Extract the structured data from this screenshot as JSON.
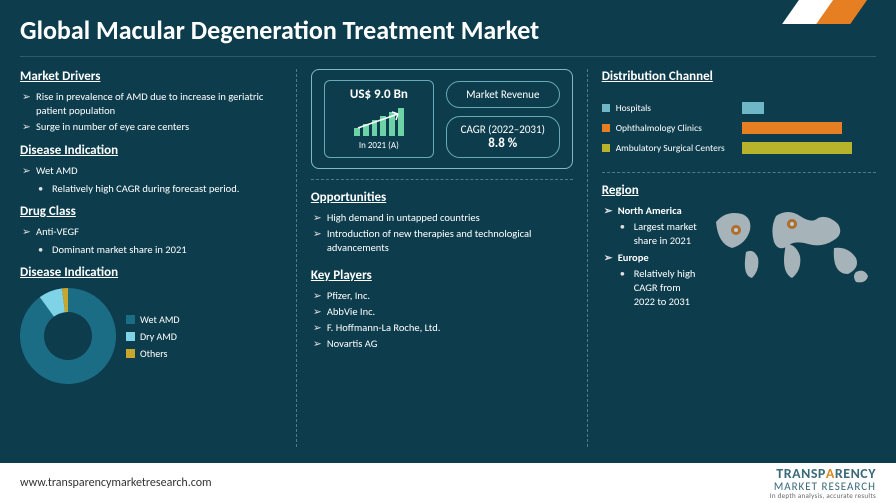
{
  "title": "Global Macular Degeneration Treatment Market",
  "footer": {
    "url": "www.transparencymarketresearch.com"
  },
  "brand": {
    "line1a": "TRANSP",
    "line1b": "A",
    "line1c": "RENCY",
    "line2": "MARKET RESEARCH",
    "tag": "In depth analysis, accurate results"
  },
  "left": {
    "drivers_h": "Market Drivers",
    "drivers": [
      "Rise in prevalence of AMD due to increase in geriatric patient population",
      "Surge in number of eye care centers"
    ],
    "disease_h": "Disease Indication",
    "disease_items": [
      "Wet AMD"
    ],
    "disease_sub": [
      "Relatively high CAGR during forecast period."
    ],
    "drug_h": "Drug Class",
    "drug_items": [
      "Anti-VEGF"
    ],
    "drug_sub": [
      "Dominant market share in 2021"
    ],
    "donut_h": "Disease Indication",
    "donut": {
      "segments": [
        {
          "label": "Wet AMD",
          "value": 90,
          "color": "#1b6d86"
        },
        {
          "label": "Dry AMD",
          "value": 8,
          "color": "#7fd3e6"
        },
        {
          "label": "Others",
          "value": 2,
          "color": "#c9a62c"
        }
      ],
      "inner_color": "#0d3d4d",
      "size": 96,
      "thickness": 24
    }
  },
  "center": {
    "kpi": {
      "value": "US$ 9.0 Bn",
      "year": "In 2021 (A)",
      "revenue_label": "Market Revenue",
      "cagr_label": "CAGR (2022–2031)",
      "cagr_value": "8.8 %",
      "bar_heights": [
        8,
        12,
        16,
        20,
        24,
        28
      ],
      "bar_color": "#6dd3a7",
      "arrow_color": "#ffffff"
    },
    "opp_h": "Opportunities",
    "opps": [
      "High demand in untapped countries",
      "Introduction of new therapies and technological advancements"
    ],
    "kp_h": "Key Players",
    "kps": [
      "Pfizer, Inc.",
      "AbbVie Inc.",
      "F. Hoffmann-La Roche, Ltd.",
      "Novartis AG"
    ]
  },
  "right": {
    "dist_h": "Distribution Channel",
    "dist": {
      "max_width": 150,
      "rows": [
        {
          "label": "Hospitals",
          "value": 22,
          "color": "#6fb7c7"
        },
        {
          "label": "Ophthalmology Clinics",
          "value": 100,
          "color": "#e67e22"
        },
        {
          "label": "Ambulatory Surgical Centers",
          "value": 110,
          "color": "#b7b42c"
        }
      ]
    },
    "region_h": "Region",
    "regions": [
      {
        "name": "North America",
        "note": "Largest market share in 2021"
      },
      {
        "name": "Europe",
        "note": "Relatively high CAGR from 2022 to 2031"
      }
    ],
    "map": {
      "land_color": "#d9dbdc",
      "pin_color": "#e67e22"
    }
  }
}
